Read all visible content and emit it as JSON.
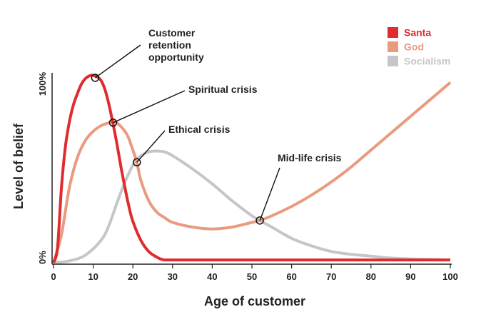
{
  "chart_data": {
    "type": "line",
    "title": "",
    "xlabel": "Age of customer",
    "ylabel": "Level of belief",
    "xlim": [
      0,
      100
    ],
    "ylim": [
      0,
      100
    ],
    "x_ticks": [
      0,
      10,
      20,
      30,
      40,
      50,
      60,
      70,
      80,
      90,
      100
    ],
    "y_tick_labels": [
      {
        "value": 0,
        "label": "0%"
      },
      {
        "value": 100,
        "label": "100%"
      }
    ],
    "legend_position": "top-right",
    "series": [
      {
        "name": "Santa",
        "color": "#e02b2f",
        "x": [
          0,
          1,
          2,
          3,
          4,
          5,
          6,
          7,
          8,
          9,
          10,
          11,
          12,
          13,
          14,
          15,
          16,
          17,
          18,
          19,
          20,
          22,
          24,
          26,
          27,
          28,
          30,
          40,
          50,
          60,
          70,
          80,
          90,
          100
        ],
        "y": [
          0,
          8,
          40,
          62,
          75,
          84,
          90,
          95,
          98,
          99.5,
          99.8,
          99,
          97,
          92,
          84,
          74,
          63,
          51,
          40,
          30,
          22,
          12,
          6,
          3,
          2,
          1.5,
          1.5,
          1.5,
          1.5,
          1.5,
          1.5,
          1.5,
          1.5,
          1.5
        ]
      },
      {
        "name": "God",
        "color": "#ea9a7f",
        "x": [
          0,
          2,
          4,
          6,
          8,
          10,
          12,
          14,
          15,
          16,
          18,
          19,
          20,
          21,
          22,
          24,
          26,
          28,
          30,
          35,
          40,
          45,
          50,
          52,
          55,
          60,
          65,
          70,
          75,
          80,
          85,
          90,
          95,
          100
        ],
        "y": [
          0,
          15,
          40,
          56,
          65,
          70,
          73,
          74.6,
          75,
          74.5,
          70,
          66,
          60,
          53.5,
          44,
          33,
          27,
          24,
          21.5,
          19,
          18,
          19,
          21.5,
          22.5,
          25,
          30,
          36,
          43,
          51,
          60,
          69,
          78,
          87,
          96
        ]
      },
      {
        "name": "Socialism",
        "color": "#c6c6ca",
        "x": [
          0,
          4,
          8,
          12,
          14,
          16,
          18,
          20,
          21,
          22,
          24,
          26,
          28,
          30,
          35,
          40,
          45,
          50,
          52,
          55,
          60,
          65,
          70,
          75,
          80,
          85,
          90,
          95,
          100
        ],
        "y": [
          0,
          1,
          4,
          12,
          20,
          32,
          43,
          52,
          55,
          57,
          59,
          59.5,
          59,
          57,
          50,
          42,
          33,
          25,
          22.5,
          19,
          13,
          9,
          6,
          4.5,
          3.5,
          2.5,
          2,
          1.8,
          1.5
        ]
      }
    ],
    "annotations": [
      {
        "lines": [
          "Customer",
          "retention",
          "opportunity"
        ],
        "x": 10.5,
        "y": 98.5
      },
      {
        "lines": [
          "Spiritual crisis"
        ],
        "x": 15,
        "y": 74.6
      },
      {
        "lines": [
          "Ethical crisis"
        ],
        "x": 21,
        "y": 53.5
      },
      {
        "lines": [
          "Mid-life crisis"
        ],
        "x": 52,
        "y": 22.5
      }
    ]
  }
}
